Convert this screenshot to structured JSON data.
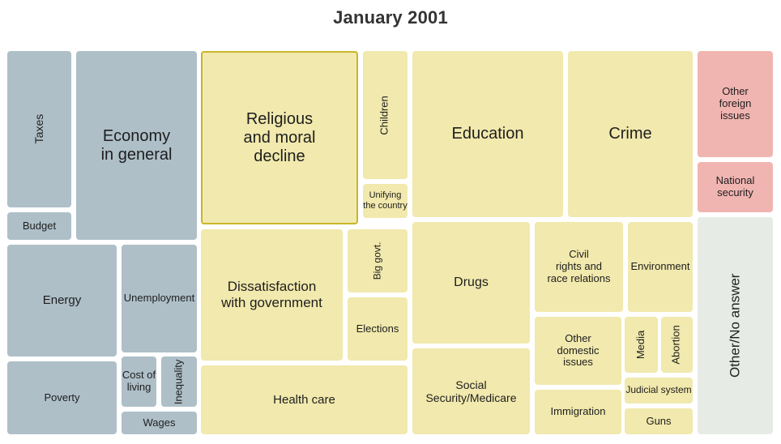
{
  "chart_data": {
    "type": "treemap",
    "title": "January 2001",
    "colors": {
      "economic": "#aebfc8",
      "domestic": "#f1e9ad",
      "foreign": "#f1b5b1",
      "other": "#e6ebe6",
      "highlight_border": "#c9b62a"
    },
    "groups": [
      {
        "name": "economic",
        "items": [
          {
            "label": "Taxes",
            "value": 2.2
          },
          {
            "label": "Budget",
            "value": 0.6
          },
          {
            "label": "Economy\nin general",
            "value": 5.3
          },
          {
            "label": "Energy",
            "value": 2.4
          },
          {
            "label": "Unemployment",
            "value": 1.6
          },
          {
            "label": "Poverty",
            "value": 1.5
          },
          {
            "label": "Cost of\nliving",
            "value": 0.5
          },
          {
            "label": "Inequality",
            "value": 0.4
          },
          {
            "label": "Wages",
            "value": 0.5
          }
        ]
      },
      {
        "name": "domestic",
        "items": [
          {
            "label": "Religious\nand moral\ndecline",
            "value": 6.2
          },
          {
            "label": "Children",
            "value": 1.7
          },
          {
            "label": "Unifying\nthe country",
            "value": 0.5
          },
          {
            "label": "Education",
            "value": 6.0
          },
          {
            "label": "Crime",
            "value": 4.6
          },
          {
            "label": "Dissatisfaction\nwith government",
            "value": 4.6
          },
          {
            "label": "Big govt.",
            "value": 0.9
          },
          {
            "label": "Elections",
            "value": 1.0
          },
          {
            "label": "Health care",
            "value": 3.0
          },
          {
            "label": "Drugs",
            "value": 3.8
          },
          {
            "label": "Social\nSecurity/Medicare",
            "value": 2.4
          },
          {
            "label": "Civil\nrights and\nrace relations",
            "value": 2.0
          },
          {
            "label": "Environment",
            "value": 1.4
          },
          {
            "label": "Other\ndomestic\nissues",
            "value": 1.4
          },
          {
            "label": "Media",
            "value": 0.5
          },
          {
            "label": "Abortion",
            "value": 0.5
          },
          {
            "label": "Immigration",
            "value": 0.9
          },
          {
            "label": "Judicial system",
            "value": 0.3
          },
          {
            "label": "Guns",
            "value": 0.3
          }
        ]
      },
      {
        "name": "foreign",
        "items": [
          {
            "label": "Other\nforeign\nissues",
            "value": 1.5
          },
          {
            "label": "National\nsecurity",
            "value": 0.6
          }
        ]
      },
      {
        "name": "other",
        "items": [
          {
            "label": "Other/No answer",
            "value": 3.6
          }
        ]
      }
    ]
  }
}
